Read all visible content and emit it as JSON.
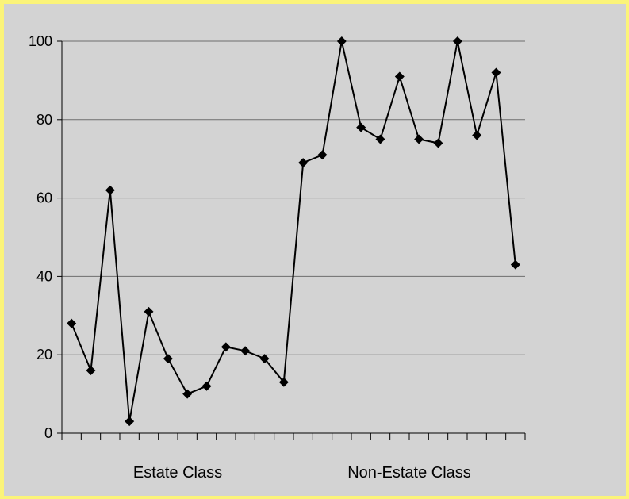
{
  "chart_data": {
    "type": "line",
    "title": "",
    "xlabel": "",
    "ylabel": "",
    "ylim": [
      0,
      100
    ],
    "yticks": [
      0,
      20,
      40,
      60,
      80,
      100
    ],
    "grid": "horizontal",
    "legend": "none",
    "x_group_labels": [
      "Estate Class",
      "Non-Estate Class"
    ],
    "series": [
      {
        "color": "#000000",
        "marker": "diamond",
        "values": [
          28,
          16,
          62,
          3,
          31,
          19,
          10,
          12,
          22,
          21,
          19,
          13,
          69,
          71,
          100,
          78,
          75,
          91,
          75,
          74,
          100,
          76,
          92,
          43
        ]
      }
    ]
  }
}
